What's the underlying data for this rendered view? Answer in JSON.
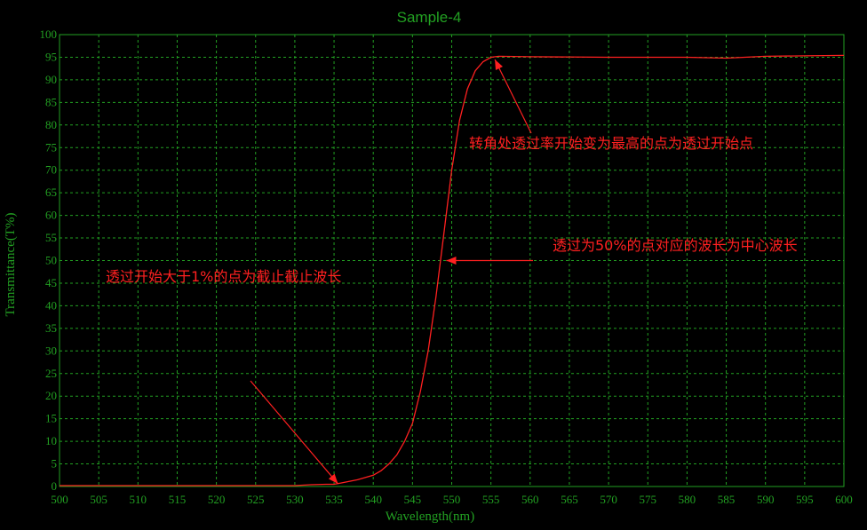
{
  "chart_data": {
    "type": "line",
    "title": "Sample-4",
    "xlabel": "Wavelength(nm)",
    "ylabel": "Transmittance(T%)",
    "xlim": [
      500,
      600
    ],
    "ylim": [
      0,
      100
    ],
    "x_ticks": [
      500,
      505,
      510,
      515,
      520,
      525,
      530,
      535,
      540,
      545,
      550,
      555,
      560,
      565,
      570,
      575,
      580,
      585,
      590,
      595,
      600
    ],
    "y_ticks": [
      0,
      5,
      10,
      15,
      20,
      25,
      30,
      35,
      40,
      45,
      50,
      55,
      60,
      65,
      70,
      75,
      80,
      85,
      90,
      95,
      100
    ],
    "grid": true,
    "series": [
      {
        "color": "#ff2020",
        "x": [
          500,
          510,
          520,
          530,
          532,
          534,
          535,
          536,
          538,
          540,
          541,
          542,
          543,
          544,
          545,
          546,
          547,
          548,
          549,
          550,
          551,
          552,
          553,
          554,
          555,
          556,
          560,
          570,
          580,
          585,
          590,
          595,
          600
        ],
        "y": [
          0.2,
          0.2,
          0.2,
          0.2,
          0.4,
          0.5,
          0.5,
          0.8,
          1.5,
          2.5,
          3.5,
          5,
          7,
          10,
          14,
          21,
          30,
          42,
          56,
          70,
          81,
          88,
          92,
          94,
          95,
          95.2,
          95.1,
          95,
          95,
          94.8,
          95.2,
          95.3,
          95.4
        ]
      }
    ],
    "annotations": [
      {
        "text": "转角处透过率开始变为最高的点为透过开始点",
        "target": [
          555.5,
          94.5
        ]
      },
      {
        "text": "透过为50%的点对应的波长为中心波长",
        "target": [
          549.3,
          50
        ]
      },
      {
        "text": "透过开始大于1%的点为截止截止波长",
        "target": [
          535.5,
          0.6
        ]
      }
    ],
    "colors": {
      "background": "#000000",
      "axis": "#22a022",
      "grid": "#22a022",
      "line": "#ff2020",
      "annotation": "#ff2020"
    }
  }
}
